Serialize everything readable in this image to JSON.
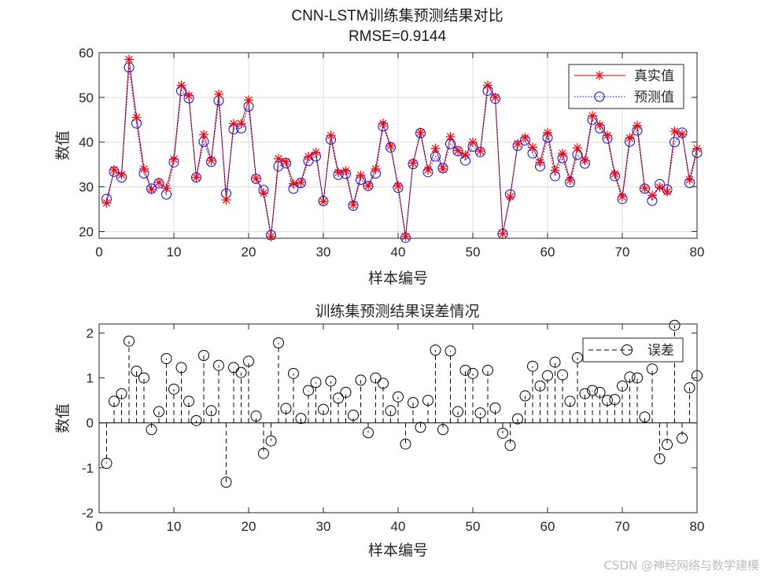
{
  "watermark": "CSDN @神经网络与数学建模",
  "colors": {
    "true_line": "#d40000",
    "true_marker": "#ff0000",
    "pred_line": "#0000cc",
    "pred_marker": "#0000ff",
    "stem": "#000000",
    "grid": "#dcdcdc",
    "axis": "#262626"
  },
  "chart_data": [
    {
      "type": "line",
      "title": "CNN-LSTM训练集预测结果对比",
      "subtitle": "RMSE=0.9144",
      "xlabel": "样本编号",
      "ylabel": "数值",
      "xlim": [
        0,
        80
      ],
      "ylim": [
        18.5,
        60
      ],
      "xticks": [
        0,
        10,
        20,
        30,
        40,
        50,
        60,
        70,
        80
      ],
      "yticks": [
        20,
        30,
        40,
        50,
        60
      ],
      "grid": true,
      "legend_position": "top-right",
      "x": [
        1,
        2,
        3,
        4,
        5,
        6,
        7,
        8,
        9,
        10,
        11,
        12,
        13,
        14,
        15,
        16,
        17,
        18,
        19,
        20,
        21,
        22,
        23,
        24,
        25,
        26,
        27,
        28,
        29,
        30,
        31,
        32,
        33,
        34,
        35,
        36,
        37,
        38,
        39,
        40,
        41,
        42,
        43,
        44,
        45,
        46,
        47,
        48,
        49,
        50,
        51,
        52,
        53,
        54,
        55,
        56,
        57,
        58,
        59,
        60,
        61,
        62,
        63,
        64,
        65,
        66,
        67,
        68,
        69,
        70,
        71,
        72,
        73,
        74,
        75,
        76,
        77,
        78,
        79,
        80
      ],
      "series": [
        {
          "name": "真实值",
          "marker": "*",
          "line": "solid",
          "values": [
            26.4,
            33.8,
            32.7,
            58.5,
            45.5,
            34.0,
            29.4,
            31.0,
            29.7,
            36.2,
            52.7,
            50.4,
            32.1,
            41.7,
            35.9,
            50.7,
            27.1,
            44.1,
            44.1,
            49.4,
            31.9,
            28.6,
            18.9,
            36.3,
            35.6,
            30.7,
            31.0,
            36.8,
            37.7,
            26.7,
            41.5,
            33.2,
            33.6,
            26.0,
            32.6,
            30.2,
            34.0,
            44.2,
            39.1,
            30.2,
            18.9,
            35.3,
            42.2,
            33.8,
            38.6,
            34.0,
            41.2,
            38.1,
            37.1,
            40.0,
            38.0,
            52.7,
            50.0,
            19.5,
            27.8,
            39.6,
            41.0,
            38.8,
            35.5,
            42.1,
            33.7,
            37.5,
            31.5,
            38.7,
            35.9,
            45.9,
            43.8,
            41.5,
            32.9,
            27.8,
            40.9,
            43.7,
            29.7,
            28.1,
            29.9,
            28.9,
            42.4,
            41.8,
            31.6,
            38.6
          ]
        },
        {
          "name": "预测值",
          "marker": "o",
          "line": "dotted",
          "values": [
            27.3,
            33.4,
            32.1,
            56.7,
            44.2,
            33.0,
            29.6,
            30.8,
            28.3,
            35.5,
            51.5,
            49.8,
            32.1,
            40.1,
            35.6,
            49.3,
            28.5,
            42.9,
            43.1,
            48.0,
            31.8,
            29.3,
            19.2,
            34.6,
            35.3,
            29.6,
            30.9,
            35.8,
            36.8,
            26.8,
            40.6,
            32.7,
            32.9,
            25.8,
            31.6,
            30.2,
            33.0,
            43.5,
            38.8,
            29.8,
            18.6,
            35.1,
            42.0,
            33.3,
            36.8,
            34.2,
            39.6,
            38.0,
            35.9,
            39.0,
            37.8,
            51.5,
            49.7,
            19.5,
            28.3,
            39.2,
            40.4,
            37.5,
            34.6,
            41.0,
            32.4,
            36.4,
            31.0,
            37.2,
            35.2,
            45.0,
            43.1,
            40.8,
            32.4,
            27.3,
            40.1,
            42.6,
            29.6,
            26.9,
            30.6,
            29.4,
            40.0,
            42.1,
            30.9,
            37.6
          ]
        }
      ]
    },
    {
      "type": "stem",
      "title": "训练集预测结果误差情况",
      "xlabel": "样本编号",
      "ylabel": "数值",
      "xlim": [
        0,
        80
      ],
      "ylim": [
        -2,
        2.2
      ],
      "xticks": [
        0,
        10,
        20,
        30,
        40,
        50,
        60,
        70,
        80
      ],
      "yticks": [
        -2,
        -1,
        0,
        1,
        2
      ],
      "grid": false,
      "legend_position": "top-right",
      "x": [
        1,
        2,
        3,
        4,
        5,
        6,
        7,
        8,
        9,
        10,
        11,
        12,
        13,
        14,
        15,
        16,
        17,
        18,
        19,
        20,
        21,
        22,
        23,
        24,
        25,
        26,
        27,
        28,
        29,
        30,
        31,
        32,
        33,
        34,
        35,
        36,
        37,
        38,
        39,
        40,
        41,
        42,
        43,
        44,
        45,
        46,
        47,
        48,
        49,
        50,
        51,
        52,
        53,
        54,
        55,
        56,
        57,
        58,
        59,
        60,
        61,
        62,
        63,
        64,
        65,
        66,
        67,
        68,
        69,
        70,
        71,
        72,
        73,
        74,
        75,
        76,
        77,
        78,
        79,
        80
      ],
      "series": [
        {
          "name": "误差",
          "marker": "o",
          "line": "dashed",
          "values": [
            -0.9,
            0.48,
            0.65,
            1.82,
            1.15,
            1.0,
            -0.15,
            0.25,
            1.43,
            0.75,
            1.23,
            0.48,
            0.05,
            1.5,
            0.27,
            1.28,
            -1.32,
            1.23,
            1.12,
            1.37,
            0.15,
            -0.68,
            -0.4,
            1.78,
            0.32,
            1.1,
            0.1,
            0.72,
            0.9,
            0.3,
            0.93,
            0.55,
            0.68,
            0.17,
            0.95,
            -0.22,
            1.0,
            0.88,
            0.27,
            0.58,
            -0.47,
            0.45,
            -0.1,
            0.5,
            1.62,
            -0.15,
            1.6,
            0.25,
            1.17,
            1.1,
            0.22,
            1.17,
            0.33,
            -0.23,
            -0.5,
            0.09,
            0.6,
            1.26,
            0.82,
            1.05,
            1.35,
            1.07,
            0.48,
            1.45,
            0.65,
            0.72,
            0.68,
            0.5,
            0.52,
            0.82,
            1.02,
            1.0,
            0.13,
            1.2,
            -0.8,
            -0.48,
            2.17,
            -0.34,
            0.78,
            1.05
          ]
        }
      ]
    }
  ]
}
